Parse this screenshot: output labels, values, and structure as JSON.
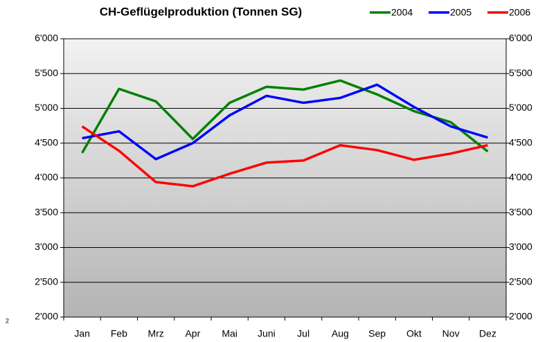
{
  "chart_data": {
    "type": "line",
    "title": "CH-Geflügelproduktion (Tonnen SG)",
    "categories": [
      "Jan",
      "Feb",
      "Mrz",
      "Apr",
      "Mai",
      "Juni",
      "Jul",
      "Aug",
      "Sep",
      "Okt",
      "Nov",
      "Dez"
    ],
    "series": [
      {
        "name": "2004",
        "color": "#008000",
        "values": [
          4360,
          5280,
          5100,
          4560,
          5080,
          5310,
          5270,
          5400,
          5200,
          4960,
          4800,
          4380
        ]
      },
      {
        "name": "2005",
        "color": "#0000ff",
        "values": [
          4570,
          4670,
          4270,
          4500,
          4900,
          5180,
          5080,
          5150,
          5340,
          5020,
          4740,
          4580
        ]
      },
      {
        "name": "2006",
        "color": "#ff0000",
        "values": [
          4740,
          4390,
          3940,
          3880,
          4060,
          4220,
          4250,
          4470,
          4400,
          4260,
          4350,
          4470
        ]
      }
    ],
    "ylim": [
      2000,
      6000
    ],
    "yticks": [
      {
        "value": 2000,
        "label": "2'000"
      },
      {
        "value": 2500,
        "label": "2'500"
      },
      {
        "value": 3000,
        "label": "3'000"
      },
      {
        "value": 3500,
        "label": "3'500"
      },
      {
        "value": 4000,
        "label": "4'000"
      },
      {
        "value": 4500,
        "label": "4'500"
      },
      {
        "value": 5000,
        "label": "5'000"
      },
      {
        "value": 5500,
        "label": "5'500"
      },
      {
        "value": 6000,
        "label": "6'000"
      }
    ],
    "y2lim": [
      2000,
      6000
    ],
    "y2ticks": [
      {
        "value": 2000,
        "label": "2'000"
      },
      {
        "value": 2500,
        "label": "2'500"
      },
      {
        "value": 3000,
        "label": "3'000"
      },
      {
        "value": 3500,
        "label": "3'500"
      },
      {
        "value": 4000,
        "label": "4'000"
      },
      {
        "value": 4500,
        "label": "4'500"
      },
      {
        "value": 5000,
        "label": "5'000"
      },
      {
        "value": 5500,
        "label": "5'500"
      },
      {
        "value": 6000,
        "label": "6'000"
      }
    ],
    "grid": true,
    "legend": "top-right",
    "annotations": [
      "2"
    ]
  }
}
